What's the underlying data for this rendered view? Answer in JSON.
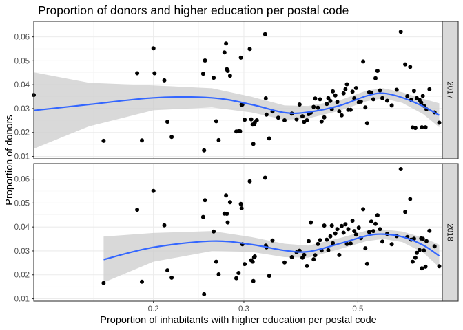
{
  "chart_data": {
    "type": "scatter",
    "title": "Proportion of donors and higher education per postal code",
    "xlabel": "Proportion of inhabitants with higher education per postal code",
    "ylabel": "Proportion of donors",
    "x_scale": "log",
    "xlim": [
      0.117,
      0.73
    ],
    "ylim": [
      0.009,
      0.0665
    ],
    "x_ticks": [
      0.2,
      0.3,
      0.5
    ],
    "x_tick_labels": [
      "0.2",
      "0.3",
      "0.5"
    ],
    "y_ticks": [
      0.01,
      0.02,
      0.03,
      0.04,
      0.05,
      0.06
    ],
    "y_tick_labels": [
      "0.01",
      "0.02",
      "0.03",
      "0.04",
      "0.05",
      "0.06"
    ],
    "smooth_color": "#3366ff",
    "ribbon_color": "#cccccc",
    "point_color": "#000000",
    "grid": true,
    "panels": [
      {
        "facet": "2017",
        "points": [
          [
            0.117,
            0.0357
          ],
          [
            0.16,
            0.0165
          ],
          [
            0.186,
            0.0448
          ],
          [
            0.19,
            0.0167
          ],
          [
            0.2,
            0.0552
          ],
          [
            0.201,
            0.0448
          ],
          [
            0.21,
            0.0418
          ],
          [
            0.213,
            0.0245
          ],
          [
            0.217,
            0.0181
          ],
          [
            0.25,
            0.0446
          ],
          [
            0.251,
            0.0125
          ],
          [
            0.252,
            0.0501
          ],
          [
            0.262,
            0.0429
          ],
          [
            0.265,
            0.0247
          ],
          [
            0.268,
            0.0168
          ],
          [
            0.275,
            0.0535
          ],
          [
            0.277,
            0.0572
          ],
          [
            0.278,
            0.0465
          ],
          [
            0.279,
            0.0458
          ],
          [
            0.282,
            0.0437
          ],
          [
            0.29,
            0.0204
          ],
          [
            0.293,
            0.0206
          ],
          [
            0.295,
            0.0205
          ],
          [
            0.296,
            0.0513
          ],
          [
            0.297,
            0.0316
          ],
          [
            0.298,
            0.0317
          ],
          [
            0.301,
            0.0253
          ],
          [
            0.308,
            0.0549
          ],
          [
            0.31,
            0.0255
          ],
          [
            0.312,
            0.0233
          ],
          [
            0.313,
            0.0152
          ],
          [
            0.314,
            0.0234
          ],
          [
            0.315,
            0.0242
          ],
          [
            0.318,
            0.0251
          ],
          [
            0.33,
            0.0611
          ],
          [
            0.331,
            0.0343
          ],
          [
            0.332,
            0.0275
          ],
          [
            0.336,
            0.0175
          ],
          [
            0.341,
            0.0288
          ],
          [
            0.35,
            0.0262
          ],
          [
            0.36,
            0.0251
          ],
          [
            0.372,
            0.0279
          ],
          [
            0.38,
            0.0255
          ],
          [
            0.385,
            0.0317
          ],
          [
            0.39,
            0.0268
          ],
          [
            0.393,
            0.0244
          ],
          [
            0.398,
            0.0251
          ],
          [
            0.401,
            0.0277
          ],
          [
            0.405,
            0.0283
          ],
          [
            0.41,
            0.0307
          ],
          [
            0.413,
            0.0342
          ],
          [
            0.418,
            0.0304
          ],
          [
            0.422,
            0.0339
          ],
          [
            0.425,
            0.0246
          ],
          [
            0.43,
            0.0263
          ],
          [
            0.435,
            0.0319
          ],
          [
            0.438,
            0.0344
          ],
          [
            0.442,
            0.0332
          ],
          [
            0.445,
            0.0298
          ],
          [
            0.447,
            0.0372
          ],
          [
            0.452,
            0.0355
          ],
          [
            0.456,
            0.0328
          ],
          [
            0.46,
            0.0288
          ],
          [
            0.465,
            0.0272
          ],
          [
            0.469,
            0.0364
          ],
          [
            0.473,
            0.0381
          ],
          [
            0.476,
            0.0402
          ],
          [
            0.479,
            0.0295
          ],
          [
            0.484,
            0.0295
          ],
          [
            0.488,
            0.0371
          ],
          [
            0.492,
            0.0343
          ],
          [
            0.496,
            0.0386
          ],
          [
            0.502,
            0.0326
          ],
          [
            0.507,
            0.0329
          ],
          [
            0.512,
            0.0497
          ],
          [
            0.517,
            0.0305
          ],
          [
            0.521,
            0.0239
          ],
          [
            0.526,
            0.0369
          ],
          [
            0.531,
            0.0366
          ],
          [
            0.536,
            0.0339
          ],
          [
            0.541,
            0.0427
          ],
          [
            0.546,
            0.0458
          ],
          [
            0.552,
            0.0376
          ],
          [
            0.558,
            0.0344
          ],
          [
            0.57,
            0.0333
          ],
          [
            0.582,
            0.0313
          ],
          [
            0.595,
            0.0379
          ],
          [
            0.606,
            0.0621
          ],
          [
            0.618,
            0.0485
          ],
          [
            0.624,
            0.0352
          ],
          [
            0.632,
            0.0474
          ],
          [
            0.635,
            0.0336
          ],
          [
            0.639,
            0.0221
          ],
          [
            0.643,
            0.0374
          ],
          [
            0.647,
            0.0219
          ],
          [
            0.651,
            0.0344
          ],
          [
            0.659,
            0.0336
          ],
          [
            0.664,
            0.0325
          ],
          [
            0.666,
            0.0222
          ],
          [
            0.669,
            0.0353
          ],
          [
            0.672,
            0.0312
          ],
          [
            0.677,
            0.0222
          ],
          [
            0.68,
            0.0297
          ],
          [
            0.689,
            0.0381
          ],
          [
            0.705,
            0.0284
          ],
          [
            0.72,
            0.0241
          ]
        ],
        "smooth": [
          [
            0.117,
            0.0292
          ],
          [
            0.15,
            0.0317
          ],
          [
            0.2,
            0.0345
          ],
          [
            0.26,
            0.0345
          ],
          [
            0.31,
            0.0317
          ],
          [
            0.36,
            0.0283
          ],
          [
            0.4,
            0.0285
          ],
          [
            0.46,
            0.0312
          ],
          [
            0.52,
            0.0353
          ],
          [
            0.56,
            0.0364
          ],
          [
            0.61,
            0.0346
          ],
          [
            0.67,
            0.0309
          ],
          [
            0.72,
            0.0272
          ]
        ],
        "ribbon_lower": [
          [
            0.117,
            0.0132
          ],
          [
            0.15,
            0.0226
          ],
          [
            0.2,
            0.0293
          ],
          [
            0.26,
            0.0305
          ],
          [
            0.31,
            0.0284
          ],
          [
            0.36,
            0.0253
          ],
          [
            0.4,
            0.0259
          ],
          [
            0.46,
            0.029
          ],
          [
            0.52,
            0.0331
          ],
          [
            0.56,
            0.0343
          ],
          [
            0.61,
            0.0324
          ],
          [
            0.67,
            0.0277
          ],
          [
            0.72,
            0.0222
          ]
        ],
        "ribbon_upper": [
          [
            0.117,
            0.0452
          ],
          [
            0.15,
            0.0408
          ],
          [
            0.2,
            0.0397
          ],
          [
            0.26,
            0.0385
          ],
          [
            0.31,
            0.035
          ],
          [
            0.36,
            0.0313
          ],
          [
            0.4,
            0.0311
          ],
          [
            0.46,
            0.0334
          ],
          [
            0.52,
            0.0375
          ],
          [
            0.56,
            0.0385
          ],
          [
            0.61,
            0.0368
          ],
          [
            0.67,
            0.0341
          ],
          [
            0.72,
            0.0322
          ]
        ]
      },
      {
        "facet": "2018",
        "points": [
          [
            0.16,
            0.0166
          ],
          [
            0.186,
            0.0472
          ],
          [
            0.19,
            0.0171
          ],
          [
            0.2,
            0.0551
          ],
          [
            0.21,
            0.0407
          ],
          [
            0.213,
            0.0219
          ],
          [
            0.217,
            0.0188
          ],
          [
            0.25,
            0.0442
          ],
          [
            0.251,
            0.0119
          ],
          [
            0.252,
            0.0512
          ],
          [
            0.262,
            0.0381
          ],
          [
            0.265,
            0.0255
          ],
          [
            0.268,
            0.0202
          ],
          [
            0.275,
            0.0456
          ],
          [
            0.277,
            0.0532
          ],
          [
            0.278,
            0.0455
          ],
          [
            0.279,
            0.0419
          ],
          [
            0.282,
            0.0503
          ],
          [
            0.29,
            0.0186
          ],
          [
            0.293,
            0.0208
          ],
          [
            0.296,
            0.0496
          ],
          [
            0.297,
            0.0478
          ],
          [
            0.298,
            0.0328
          ],
          [
            0.301,
            0.0245
          ],
          [
            0.308,
            0.0591
          ],
          [
            0.31,
            0.0261
          ],
          [
            0.312,
            0.0255
          ],
          [
            0.313,
            0.0174
          ],
          [
            0.314,
            0.0273
          ],
          [
            0.315,
            0.0277
          ],
          [
            0.33,
            0.0606
          ],
          [
            0.331,
            0.0322
          ],
          [
            0.332,
            0.0315
          ],
          [
            0.336,
            0.0196
          ],
          [
            0.341,
            0.0344
          ],
          [
            0.36,
            0.0252
          ],
          [
            0.372,
            0.0274
          ],
          [
            0.38,
            0.0294
          ],
          [
            0.385,
            0.0301
          ],
          [
            0.39,
            0.0272
          ],
          [
            0.393,
            0.0283
          ],
          [
            0.398,
            0.0237
          ],
          [
            0.401,
            0.0341
          ],
          [
            0.405,
            0.0419
          ],
          [
            0.41,
            0.0265
          ],
          [
            0.413,
            0.0282
          ],
          [
            0.418,
            0.0329
          ],
          [
            0.422,
            0.0345
          ],
          [
            0.425,
            0.0302
          ],
          [
            0.43,
            0.0406
          ],
          [
            0.435,
            0.0347
          ],
          [
            0.438,
            0.0303
          ],
          [
            0.442,
            0.0361
          ],
          [
            0.445,
            0.0406
          ],
          [
            0.447,
            0.0332
          ],
          [
            0.452,
            0.0373
          ],
          [
            0.456,
            0.0391
          ],
          [
            0.46,
            0.0283
          ],
          [
            0.465,
            0.0404
          ],
          [
            0.469,
            0.0376
          ],
          [
            0.473,
            0.0411
          ],
          [
            0.476,
            0.0329
          ],
          [
            0.479,
            0.0391
          ],
          [
            0.484,
            0.0331
          ],
          [
            0.488,
            0.0426
          ],
          [
            0.492,
            0.0383
          ],
          [
            0.496,
            0.0368
          ],
          [
            0.502,
            0.0397
          ],
          [
            0.507,
            0.0354
          ],
          [
            0.512,
            0.0474
          ],
          [
            0.517,
            0.0311
          ],
          [
            0.521,
            0.0246
          ],
          [
            0.526,
            0.0379
          ],
          [
            0.531,
            0.0423
          ],
          [
            0.536,
            0.0383
          ],
          [
            0.541,
            0.0413
          ],
          [
            0.546,
            0.0449
          ],
          [
            0.552,
            0.0391
          ],
          [
            0.558,
            0.0339
          ],
          [
            0.57,
            0.0371
          ],
          [
            0.582,
            0.0328
          ],
          [
            0.595,
            0.0362
          ],
          [
            0.606,
            0.0642
          ],
          [
            0.618,
            0.0463
          ],
          [
            0.624,
            0.0358
          ],
          [
            0.632,
            0.0517
          ],
          [
            0.635,
            0.0347
          ],
          [
            0.639,
            0.0255
          ],
          [
            0.643,
            0.0351
          ],
          [
            0.647,
            0.0272
          ],
          [
            0.651,
            0.0292
          ],
          [
            0.659,
            0.0304
          ],
          [
            0.664,
            0.0352
          ],
          [
            0.666,
            0.0227
          ],
          [
            0.669,
            0.0351
          ],
          [
            0.672,
            0.0302
          ],
          [
            0.677,
            0.0234
          ],
          [
            0.68,
            0.0341
          ],
          [
            0.689,
            0.0384
          ],
          [
            0.705,
            0.0319
          ],
          [
            0.72,
            0.0236
          ]
        ],
        "smooth": [
          [
            0.16,
            0.0264
          ],
          [
            0.2,
            0.0315
          ],
          [
            0.26,
            0.0341
          ],
          [
            0.31,
            0.0327
          ],
          [
            0.36,
            0.0302
          ],
          [
            0.4,
            0.0297
          ],
          [
            0.46,
            0.033
          ],
          [
            0.52,
            0.0363
          ],
          [
            0.56,
            0.037
          ],
          [
            0.61,
            0.0359
          ],
          [
            0.67,
            0.0324
          ],
          [
            0.72,
            0.0279
          ]
        ],
        "ribbon_lower": [
          [
            0.16,
            0.0168
          ],
          [
            0.2,
            0.0255
          ],
          [
            0.26,
            0.0299
          ],
          [
            0.31,
            0.0296
          ],
          [
            0.36,
            0.0274
          ],
          [
            0.4,
            0.0272
          ],
          [
            0.46,
            0.0307
          ],
          [
            0.52,
            0.0341
          ],
          [
            0.56,
            0.035
          ],
          [
            0.61,
            0.0337
          ],
          [
            0.67,
            0.0293
          ],
          [
            0.72,
            0.0232
          ]
        ],
        "ribbon_upper": [
          [
            0.16,
            0.036
          ],
          [
            0.2,
            0.0375
          ],
          [
            0.26,
            0.0383
          ],
          [
            0.31,
            0.0358
          ],
          [
            0.36,
            0.033
          ],
          [
            0.4,
            0.0322
          ],
          [
            0.46,
            0.0353
          ],
          [
            0.52,
            0.0385
          ],
          [
            0.56,
            0.039
          ],
          [
            0.61,
            0.0381
          ],
          [
            0.67,
            0.0355
          ],
          [
            0.72,
            0.0326
          ]
        ]
      }
    ]
  }
}
